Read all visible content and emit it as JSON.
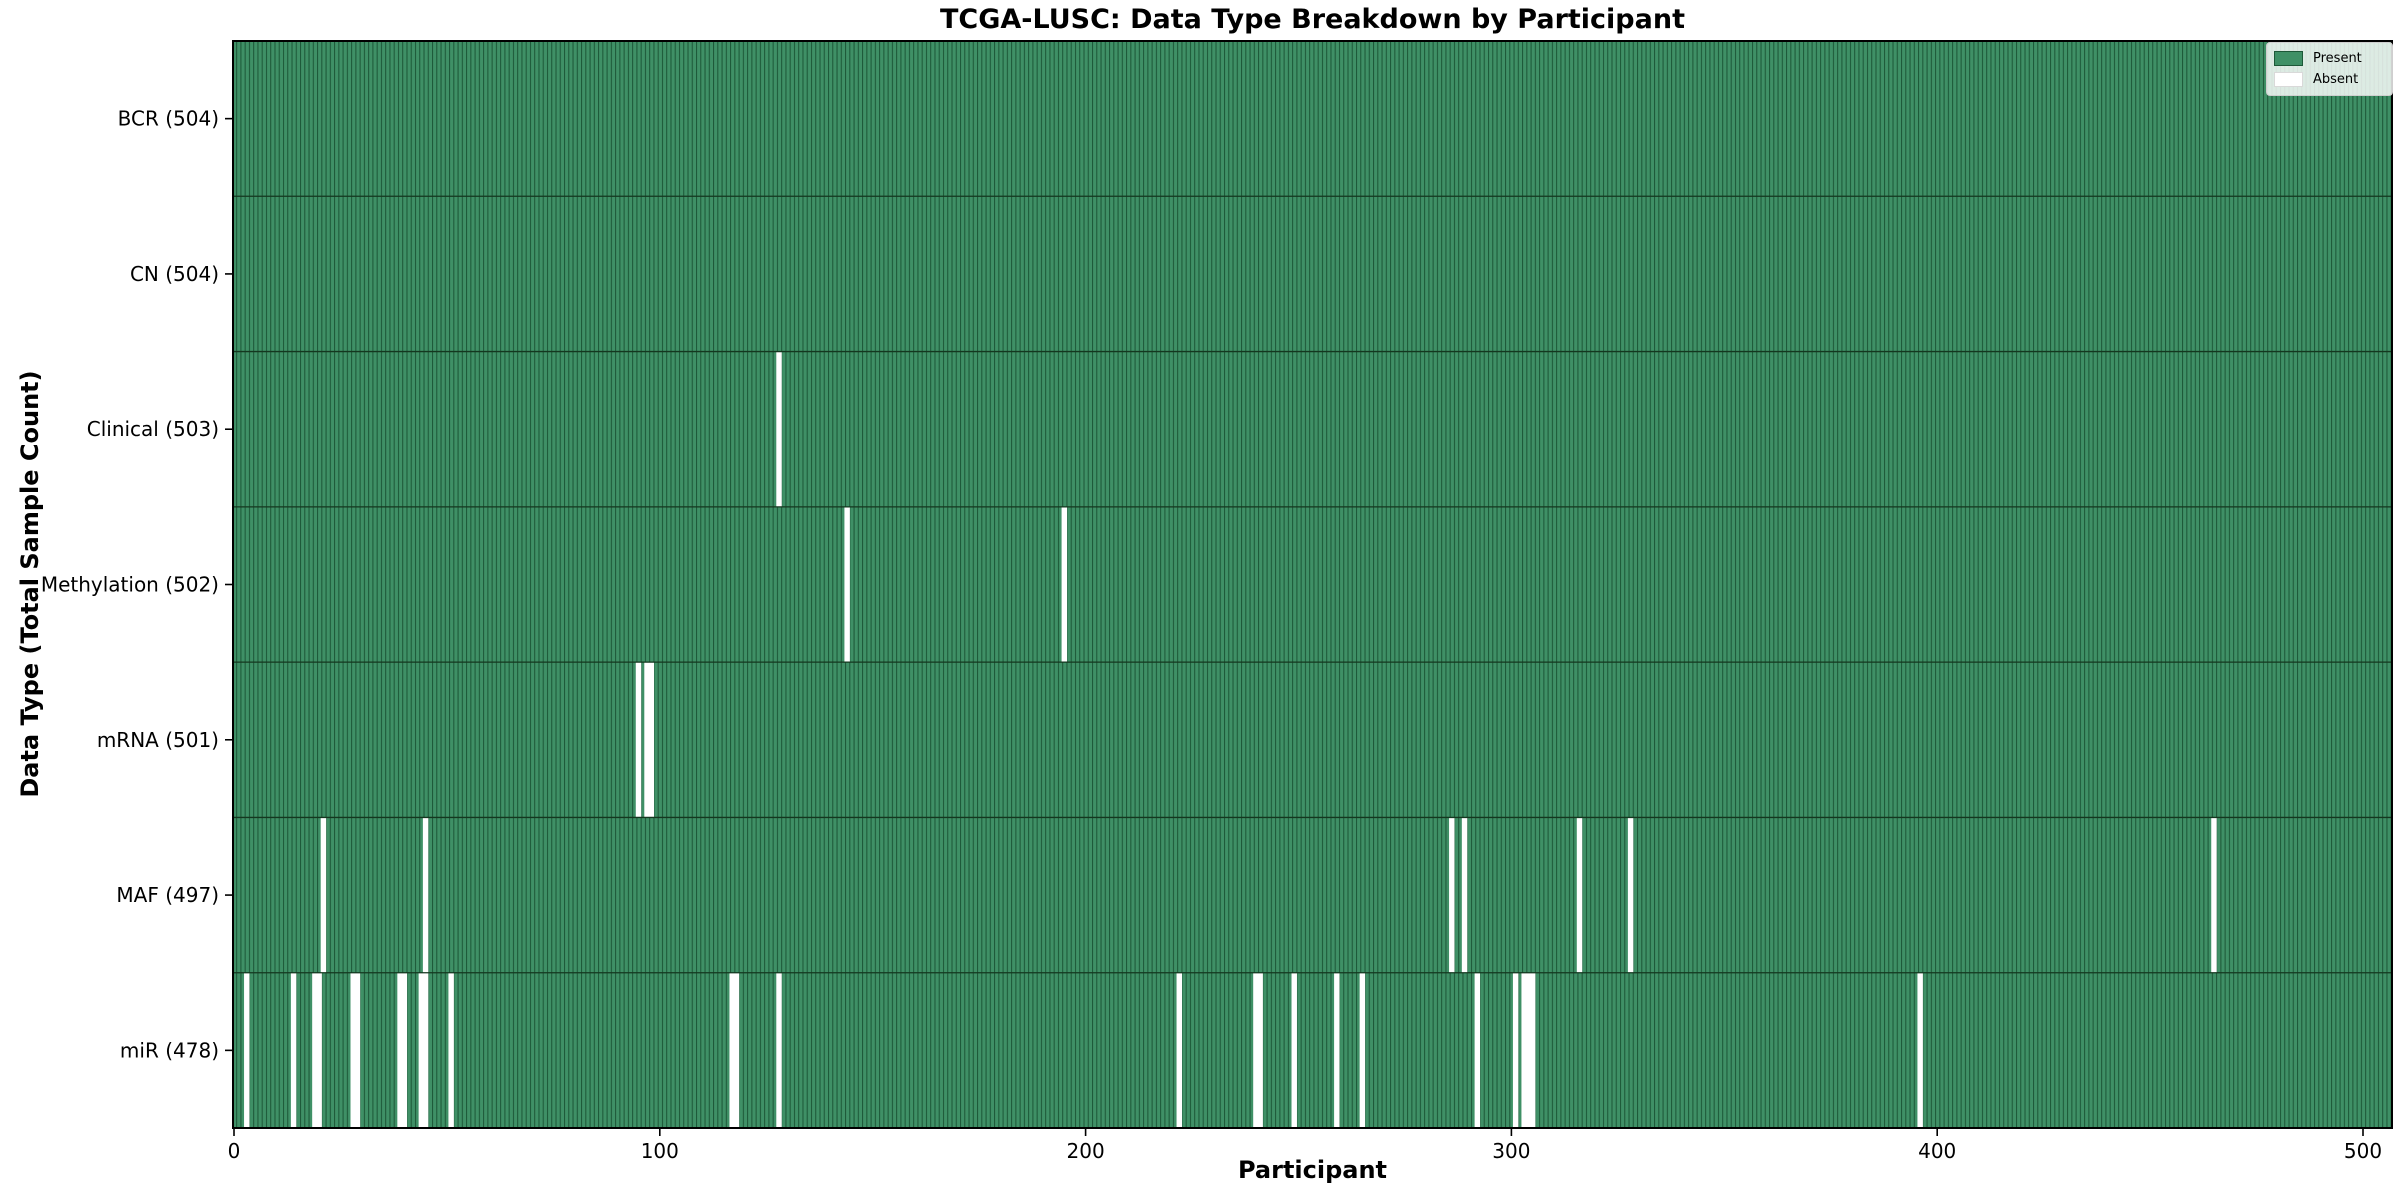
{
  "title": "TCGA-LUSC: Data Type Breakdown by Participant",
  "xlabel": "Participant",
  "ylabel": "Data Type (Total Sample Count)",
  "x_ticks": [
    0,
    100,
    200,
    300,
    400,
    500
  ],
  "legend": {
    "present_label": "Present",
    "absent_label": "Absent"
  },
  "colors": {
    "present_fill": "#3f9066",
    "bar_edge": "#1d5838",
    "absent_fill": "#ffffff",
    "spine": "#000000"
  },
  "chart_data": {
    "type": "heatmap",
    "title": "TCGA-LUSC: Data Type Breakdown by Participant",
    "xlabel": "Participant",
    "ylabel": "Data Type (Total Sample Count)",
    "x_range": [
      0,
      504
    ],
    "total_participants": 504,
    "legend_entries": [
      "Present",
      "Absent"
    ],
    "legend_position": "upper right",
    "grid": false,
    "rows": [
      {
        "label": "BCR (504)",
        "data_type": "BCR",
        "present_count": 504,
        "absent_participants": []
      },
      {
        "label": "CN (504)",
        "data_type": "CN",
        "present_count": 504,
        "absent_participants": []
      },
      {
        "label": "Clinical (503)",
        "data_type": "Clinical",
        "present_count": 503,
        "absent_participants": [
          128
        ]
      },
      {
        "label": "Methylation (502)",
        "data_type": "Methylation",
        "present_count": 502,
        "absent_participants": [
          144,
          195
        ]
      },
      {
        "label": "mRNA (501)",
        "data_type": "mRNA",
        "present_count": 501,
        "absent_participants": [
          95,
          97,
          98
        ]
      },
      {
        "label": "MAF (497)",
        "data_type": "MAF",
        "present_count": 497,
        "absent_participants": [
          21,
          45,
          286,
          289,
          316,
          328,
          465
        ]
      },
      {
        "label": "miR (478)",
        "data_type": "miR",
        "present_count": 478,
        "absent_participants": [
          3,
          14,
          19,
          20,
          28,
          29,
          39,
          40,
          44,
          45,
          51,
          117,
          118,
          128,
          222,
          240,
          241,
          249,
          259,
          265,
          292,
          301,
          303,
          304,
          305,
          396
        ]
      }
    ]
  }
}
